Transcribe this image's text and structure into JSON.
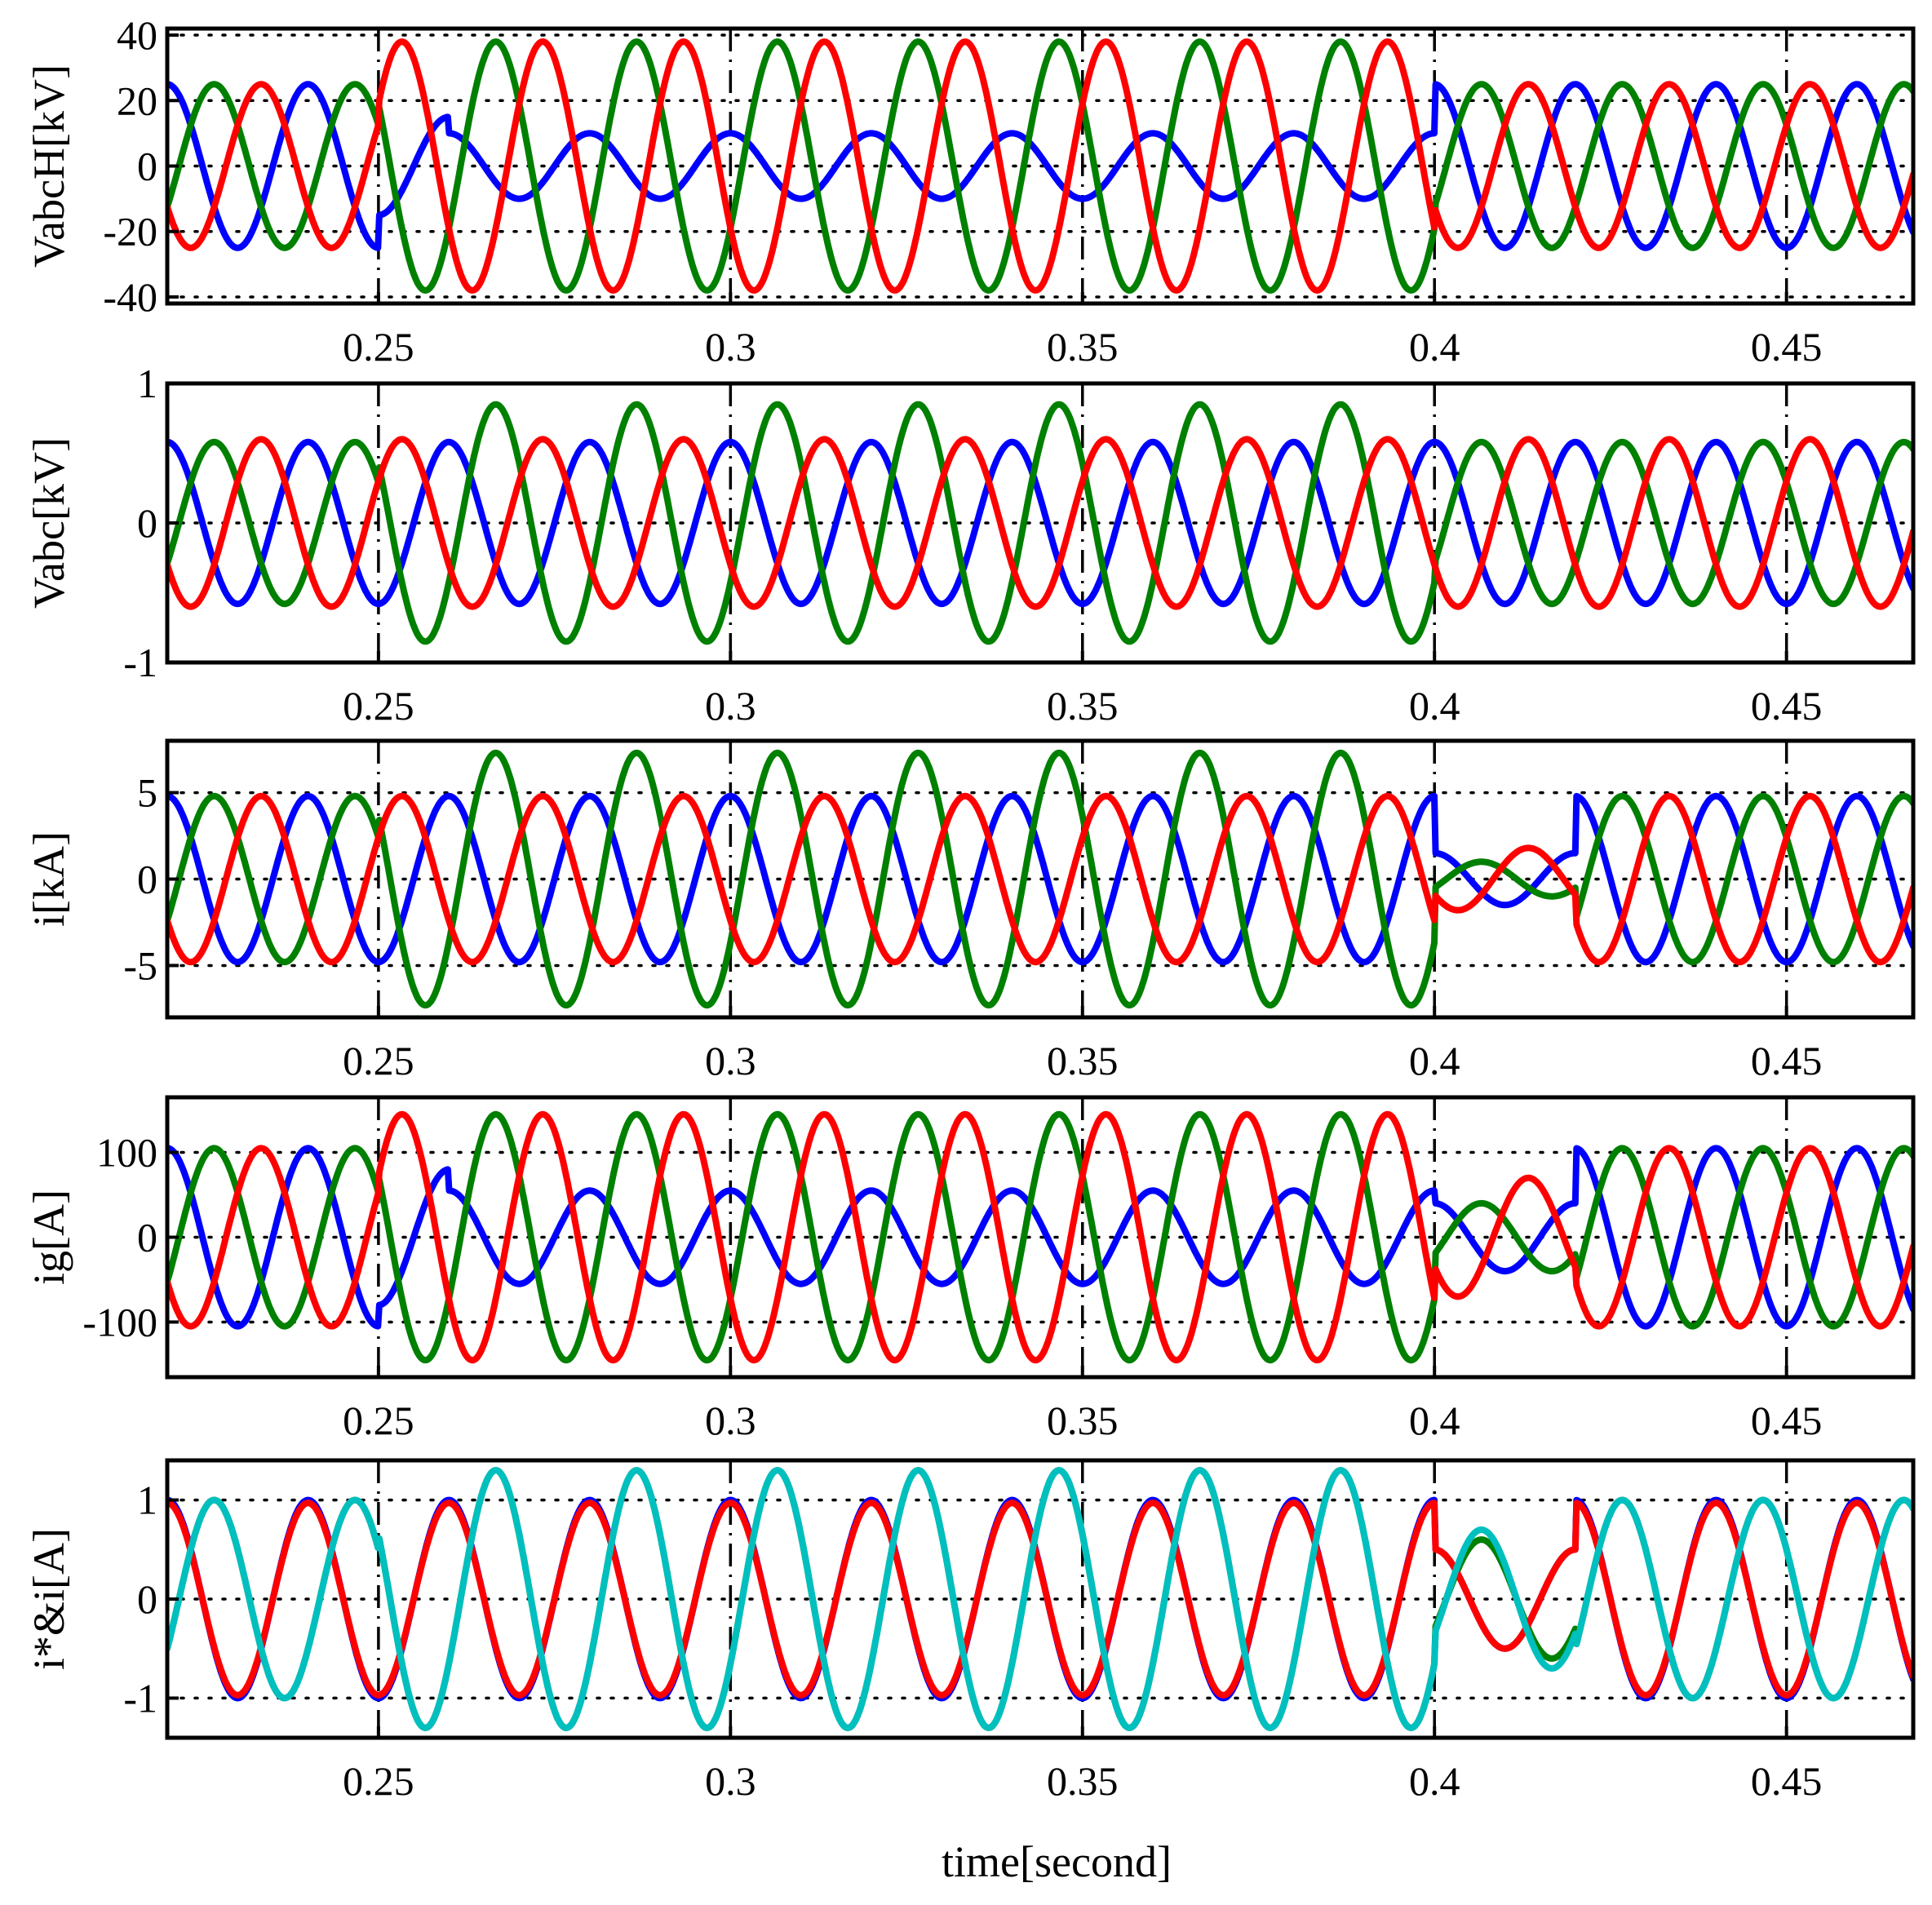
{
  "figure": {
    "xlabel": "time[second]"
  },
  "chart_data": [
    {
      "type": "line",
      "ylabel": "VabcH[kV]",
      "xlim": [
        0.22,
        0.468
      ],
      "ylim": [
        -42,
        42
      ],
      "xticks": [
        0.25,
        0.3,
        0.35,
        0.4,
        0.45
      ],
      "xtick_labels": [
        "0.25",
        "0.3",
        "0.35",
        "0.4",
        "0.45"
      ],
      "yticks": [
        40,
        20,
        0,
        -20,
        -40
      ],
      "ytick_labels": [
        "40",
        "20",
        "0",
        "-20",
        "-40"
      ],
      "grid": true,
      "frequency_hz": 50,
      "series": [
        {
          "color": "#0000ff",
          "phase_deg": 90,
          "segments": [
            {
              "t0": 0.22,
              "t1": 0.25,
              "amp": 25
            },
            {
              "t0": 0.25,
              "t1": 0.26,
              "amp": 15
            },
            {
              "t0": 0.26,
              "t1": 0.4,
              "amp": 10
            },
            {
              "t0": 0.4,
              "t1": 0.468,
              "amp": 25
            }
          ]
        },
        {
          "color": "#008000",
          "phase_deg": -30,
          "segments": [
            {
              "t0": 0.22,
              "t1": 0.25,
              "amp": 25
            },
            {
              "t0": 0.25,
              "t1": 0.4,
              "amp": 38
            },
            {
              "t0": 0.4,
              "t1": 0.468,
              "amp": 25
            }
          ]
        },
        {
          "color": "#ff0000",
          "phase_deg": -150,
          "segments": [
            {
              "t0": 0.22,
              "t1": 0.25,
              "amp": 25
            },
            {
              "t0": 0.25,
              "t1": 0.4,
              "amp": 38
            },
            {
              "t0": 0.4,
              "t1": 0.468,
              "amp": 25
            }
          ]
        }
      ]
    },
    {
      "type": "line",
      "ylabel": "Vabc[kV]",
      "xlim": [
        0.22,
        0.468
      ],
      "ylim": [
        -1,
        1
      ],
      "xticks": [
        0.25,
        0.3,
        0.35,
        0.4,
        0.45
      ],
      "xtick_labels": [
        "0.25",
        "0.3",
        "0.35",
        "0.4",
        "0.45"
      ],
      "yticks": [
        1,
        0,
        -1
      ],
      "ytick_labels": [
        "1",
        "0",
        "-1"
      ],
      "grid": true,
      "frequency_hz": 50,
      "series": [
        {
          "color": "#0000ff",
          "phase_deg": 90,
          "segments": [
            {
              "t0": 0.22,
              "t1": 0.468,
              "amp": 0.58
            }
          ]
        },
        {
          "color": "#008000",
          "phase_deg": -30,
          "segments": [
            {
              "t0": 0.22,
              "t1": 0.25,
              "amp": 0.58
            },
            {
              "t0": 0.25,
              "t1": 0.4,
              "amp": 0.85
            },
            {
              "t0": 0.4,
              "t1": 0.468,
              "amp": 0.58
            }
          ]
        },
        {
          "color": "#ff0000",
          "phase_deg": -150,
          "segments": [
            {
              "t0": 0.22,
              "t1": 0.468,
              "amp": 0.6
            }
          ]
        }
      ]
    },
    {
      "type": "line",
      "ylabel": "i[kA]",
      "xlim": [
        0.22,
        0.468
      ],
      "ylim": [
        -8,
        8
      ],
      "xticks": [
        0.25,
        0.3,
        0.35,
        0.4,
        0.45
      ],
      "xtick_labels": [
        "0.25",
        "0.3",
        "0.35",
        "0.4",
        "0.45"
      ],
      "yticks": [
        5,
        0,
        -5
      ],
      "ytick_labels": [
        "5",
        "0",
        "-5"
      ],
      "grid": true,
      "frequency_hz": 50,
      "series": [
        {
          "color": "#0000ff",
          "phase_deg": 90,
          "segments": [
            {
              "t0": 0.22,
              "t1": 0.25,
              "amp": 4.8
            },
            {
              "t0": 0.25,
              "t1": 0.4,
              "amp": 4.8
            },
            {
              "t0": 0.4,
              "t1": 0.42,
              "amp": 1.5
            },
            {
              "t0": 0.42,
              "t1": 0.468,
              "amp": 4.8
            }
          ]
        },
        {
          "color": "#008000",
          "phase_deg": -30,
          "segments": [
            {
              "t0": 0.22,
              "t1": 0.25,
              "amp": 4.8
            },
            {
              "t0": 0.25,
              "t1": 0.4,
              "amp": 7.3
            },
            {
              "t0": 0.4,
              "t1": 0.42,
              "amp": 1.0
            },
            {
              "t0": 0.42,
              "t1": 0.468,
              "amp": 4.8
            }
          ]
        },
        {
          "color": "#ff0000",
          "phase_deg": -150,
          "segments": [
            {
              "t0": 0.22,
              "t1": 0.25,
              "amp": 4.8
            },
            {
              "t0": 0.25,
              "t1": 0.4,
              "amp": 4.8
            },
            {
              "t0": 0.4,
              "t1": 0.42,
              "amp": 1.8
            },
            {
              "t0": 0.42,
              "t1": 0.468,
              "amp": 4.8
            }
          ]
        }
      ]
    },
    {
      "type": "line",
      "ylabel": "ig[A]",
      "xlim": [
        0.22,
        0.468
      ],
      "ylim": [
        -165,
        165
      ],
      "xticks": [
        0.25,
        0.3,
        0.35,
        0.4,
        0.45
      ],
      "xtick_labels": [
        "0.25",
        "0.3",
        "0.35",
        "0.4",
        "0.45"
      ],
      "yticks": [
        100,
        0,
        -100
      ],
      "ytick_labels": [
        "100",
        "0",
        "-100"
      ],
      "grid": true,
      "frequency_hz": 50,
      "series": [
        {
          "color": "#0000ff",
          "phase_deg": 90,
          "segments": [
            {
              "t0": 0.22,
              "t1": 0.25,
              "amp": 105
            },
            {
              "t0": 0.25,
              "t1": 0.26,
              "amp": 80
            },
            {
              "t0": 0.26,
              "t1": 0.4,
              "amp": 55
            },
            {
              "t0": 0.4,
              "t1": 0.42,
              "amp": 40
            },
            {
              "t0": 0.42,
              "t1": 0.468,
              "amp": 105
            }
          ]
        },
        {
          "color": "#008000",
          "phase_deg": -30,
          "segments": [
            {
              "t0": 0.22,
              "t1": 0.25,
              "amp": 105
            },
            {
              "t0": 0.25,
              "t1": 0.4,
              "amp": 145
            },
            {
              "t0": 0.4,
              "t1": 0.42,
              "amp": 40
            },
            {
              "t0": 0.42,
              "t1": 0.468,
              "amp": 105
            }
          ]
        },
        {
          "color": "#ff0000",
          "phase_deg": -150,
          "segments": [
            {
              "t0": 0.22,
              "t1": 0.25,
              "amp": 105
            },
            {
              "t0": 0.25,
              "t1": 0.4,
              "amp": 145
            },
            {
              "t0": 0.4,
              "t1": 0.42,
              "amp": 70
            },
            {
              "t0": 0.42,
              "t1": 0.468,
              "amp": 105
            }
          ]
        }
      ]
    },
    {
      "type": "line",
      "ylabel": "i*&i[A]",
      "xlim": [
        0.22,
        0.468
      ],
      "ylim": [
        -1.4,
        1.4
      ],
      "xticks": [
        0.25,
        0.3,
        0.35,
        0.4,
        0.45
      ],
      "xtick_labels": [
        "0.25",
        "0.3",
        "0.35",
        "0.4",
        "0.45"
      ],
      "yticks": [
        1,
        0,
        -1
      ],
      "ytick_labels": [
        "1",
        "0",
        "-1"
      ],
      "grid": true,
      "frequency_hz": 50,
      "series": [
        {
          "color": "#0000ff",
          "phase_deg": 90,
          "segments": [
            {
              "t0": 0.22,
              "t1": 0.4,
              "amp": 1.0
            },
            {
              "t0": 0.4,
              "t1": 0.42,
              "amp": 0.5
            },
            {
              "t0": 0.42,
              "t1": 0.468,
              "amp": 1.0
            }
          ]
        },
        {
          "color": "#008000",
          "phase_deg": -30,
          "segments": [
            {
              "t0": 0.22,
              "t1": 0.25,
              "amp": 1.0
            },
            {
              "t0": 0.25,
              "t1": 0.4,
              "amp": 1.3
            },
            {
              "t0": 0.4,
              "t1": 0.42,
              "amp": 0.6
            },
            {
              "t0": 0.42,
              "t1": 0.468,
              "amp": 1.0
            }
          ]
        },
        {
          "color": "#ff0000",
          "phase_deg": 90,
          "segments": [
            {
              "t0": 0.22,
              "t1": 0.4,
              "amp": 0.97
            },
            {
              "t0": 0.4,
              "t1": 0.42,
              "amp": 0.5
            },
            {
              "t0": 0.42,
              "t1": 0.468,
              "amp": 0.97
            }
          ]
        },
        {
          "color": "#00bfbf",
          "phase_deg": -30,
          "segments": [
            {
              "t0": 0.22,
              "t1": 0.25,
              "amp": 1.0
            },
            {
              "t0": 0.25,
              "t1": 0.4,
              "amp": 1.3
            },
            {
              "t0": 0.4,
              "t1": 0.42,
              "amp": 0.7
            },
            {
              "t0": 0.42,
              "t1": 0.468,
              "amp": 1.0
            }
          ]
        }
      ]
    }
  ]
}
